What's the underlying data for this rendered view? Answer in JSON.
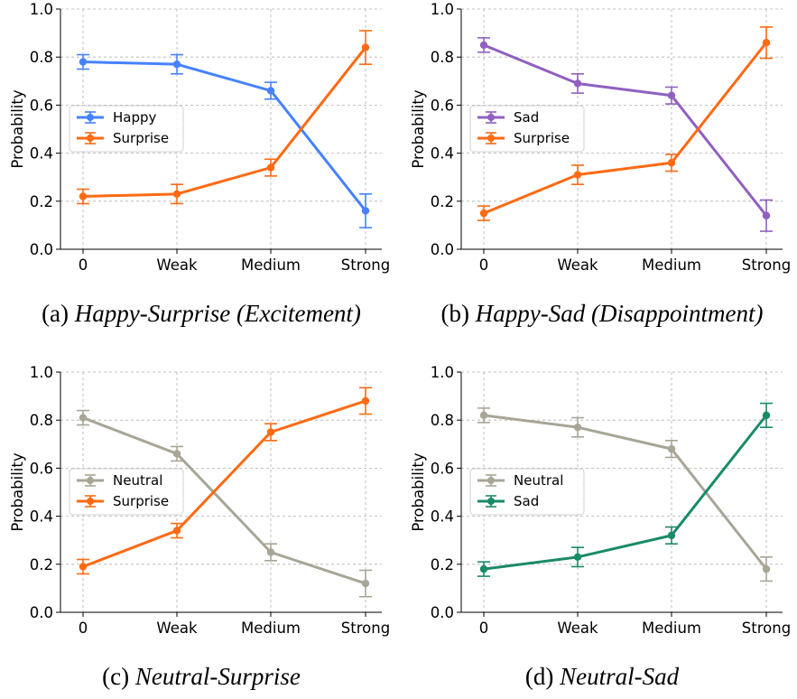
{
  "chart_data": [
    {
      "type": "line",
      "panel_label": "(a)",
      "caption_title": "Happy-Surprise (Excitement)",
      "categories": [
        "0",
        "Weak",
        "Medium",
        "Strong"
      ],
      "ylabel": "Probability",
      "ylim": [
        0.0,
        1.0
      ],
      "yticks": [
        "0.0",
        "0.2",
        "0.4",
        "0.6",
        "0.8",
        "1.0"
      ],
      "grid": true,
      "legend_position": "center-left",
      "series": [
        {
          "name": "Happy",
          "color": "#4682ff",
          "values": [
            0.78,
            0.77,
            0.66,
            0.16
          ],
          "errors": [
            0.03,
            0.04,
            0.035,
            0.07
          ]
        },
        {
          "name": "Surprise",
          "color": "#ff6a13",
          "values": [
            0.22,
            0.23,
            0.34,
            0.84
          ],
          "errors": [
            0.03,
            0.04,
            0.035,
            0.07
          ]
        }
      ]
    },
    {
      "type": "line",
      "panel_label": "(b)",
      "caption_title": "Happy-Sad (Disappointment)",
      "categories": [
        "0",
        "Weak",
        "Medium",
        "Strong"
      ],
      "ylabel": "Probability",
      "ylim": [
        0.0,
        1.0
      ],
      "yticks": [
        "0.0",
        "0.2",
        "0.4",
        "0.6",
        "0.8",
        "1.0"
      ],
      "grid": true,
      "legend_position": "center-left",
      "series": [
        {
          "name": "Sad",
          "color": "#9060c0",
          "values": [
            0.85,
            0.69,
            0.64,
            0.14
          ],
          "errors": [
            0.03,
            0.04,
            0.035,
            0.065
          ]
        },
        {
          "name": "Surprise",
          "color": "#ff6a13",
          "values": [
            0.15,
            0.31,
            0.36,
            0.86
          ],
          "errors": [
            0.03,
            0.04,
            0.035,
            0.065
          ]
        }
      ]
    },
    {
      "type": "line",
      "panel_label": "(c)",
      "caption_title": "Neutral-Surprise",
      "categories": [
        "0",
        "Weak",
        "Medium",
        "Strong"
      ],
      "ylabel": "Probability",
      "ylim": [
        0.0,
        1.0
      ],
      "yticks": [
        "0.0",
        "0.2",
        "0.4",
        "0.6",
        "0.8",
        "1.0"
      ],
      "grid": true,
      "legend_position": "center-left",
      "series": [
        {
          "name": "Neutral",
          "color": "#a8a596",
          "values": [
            0.81,
            0.66,
            0.25,
            0.12
          ],
          "errors": [
            0.03,
            0.03,
            0.035,
            0.055
          ]
        },
        {
          "name": "Surprise",
          "color": "#ff6a13",
          "values": [
            0.19,
            0.34,
            0.75,
            0.88
          ],
          "errors": [
            0.03,
            0.03,
            0.035,
            0.055
          ]
        }
      ]
    },
    {
      "type": "line",
      "panel_label": "(d)",
      "caption_title": "Neutral-Sad",
      "categories": [
        "0",
        "Weak",
        "Medium",
        "Strong"
      ],
      "ylabel": "Probability",
      "ylim": [
        0.0,
        1.0
      ],
      "yticks": [
        "0.0",
        "0.2",
        "0.4",
        "0.6",
        "0.8",
        "1.0"
      ],
      "grid": true,
      "legend_position": "center-left",
      "series": [
        {
          "name": "Neutral",
          "color": "#a8a596",
          "values": [
            0.82,
            0.77,
            0.68,
            0.18
          ],
          "errors": [
            0.03,
            0.04,
            0.035,
            0.05
          ]
        },
        {
          "name": "Sad",
          "color": "#1a8a68",
          "values": [
            0.18,
            0.23,
            0.32,
            0.82
          ],
          "errors": [
            0.03,
            0.04,
            0.035,
            0.05
          ]
        }
      ]
    }
  ]
}
